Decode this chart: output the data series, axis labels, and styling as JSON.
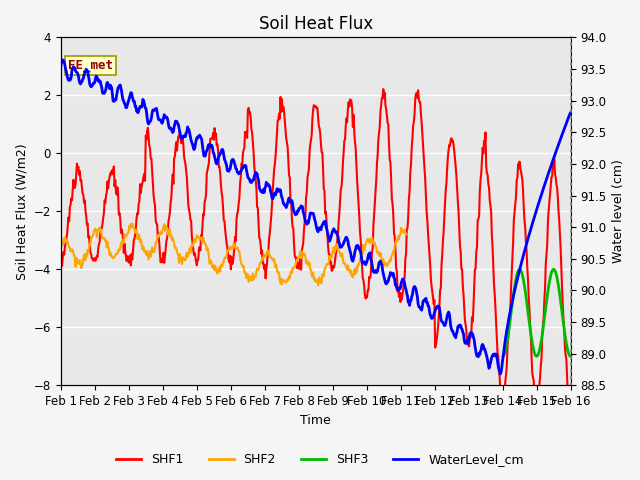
{
  "title": "Soil Heat Flux",
  "xlabel": "Time",
  "ylabel_left": "Soil Heat Flux (W/m2)",
  "ylabel_right": "Water level (cm)",
  "annotation": "EE_met",
  "ylim_left": [
    -8,
    4
  ],
  "ylim_right": [
    88.5,
    94.0
  ],
  "yticks_left": [
    -8,
    -6,
    -4,
    -2,
    0,
    2,
    4
  ],
  "yticks_right": [
    88.5,
    89.0,
    89.5,
    90.0,
    90.5,
    91.0,
    91.5,
    92.0,
    92.5,
    93.0,
    93.5,
    94.0
  ],
  "xtick_labels": [
    "Feb 1",
    "Feb 2",
    "Feb 3",
    "Feb 4",
    "Feb 5",
    "Feb 6",
    "Feb 7",
    "Feb 8",
    "Feb 9",
    "Feb 10",
    "Feb 11",
    "Feb 12",
    "Feb 13",
    "Feb 14",
    "Feb 15",
    "Feb 16"
  ],
  "colors": {
    "SHF1": "#ff0000",
    "SHF2": "#ffa500",
    "SHF3": "#00bb00",
    "WaterLevel_cm": "#0000ff",
    "background": "#e8e8e8",
    "annotation_bg": "#ffffcc",
    "annotation_border": "#999900",
    "annotation_text": "#990000"
  },
  "line_widths": {
    "SHF1": 1.5,
    "SHF2": 1.5,
    "SHF3": 2.0,
    "WaterLevel_cm": 2.0
  },
  "legend_entries": [
    "SHF1",
    "SHF2",
    "SHF3",
    "WaterLevel_cm"
  ],
  "grid_color": "#ffffff",
  "title_fontsize": 12,
  "label_fontsize": 9,
  "tick_fontsize": 8.5
}
